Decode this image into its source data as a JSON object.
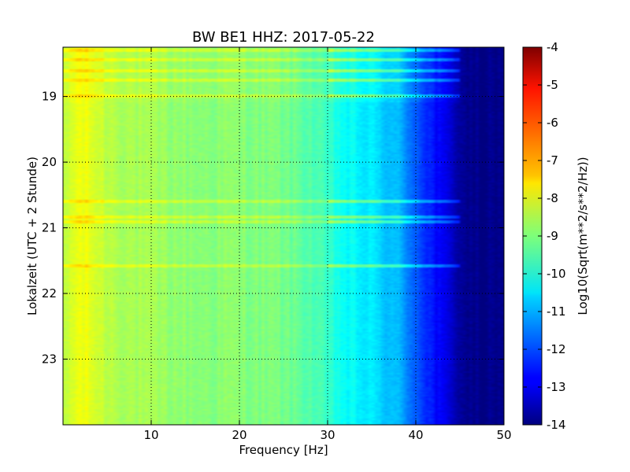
{
  "chart_data": {
    "type": "heatmap",
    "title": "BW BE1 HHZ: 2017-05-22",
    "xlabel": "Frequency [Hz]",
    "ylabel": "Lokalzeit (UTC + 2 Stunde)",
    "xlim": [
      0,
      50
    ],
    "ylim_hours_local": [
      18.25,
      24.0
    ],
    "x_ticks": [
      "10",
      "20",
      "30",
      "40",
      "50"
    ],
    "y_ticks": [
      "19",
      "20",
      "21",
      "22",
      "23"
    ],
    "grid": true,
    "y_inverted": true,
    "colormap": "jet",
    "colorbar": {
      "label": "Log10(Sqrt(m**2/s**2/Hz))",
      "range": [
        -14,
        -4
      ],
      "ticks": [
        "-4",
        "-5",
        "-6",
        "-7",
        "-8",
        "-9",
        "-10",
        "-11",
        "-12",
        "-13",
        "-14"
      ]
    },
    "spectral_profile": {
      "frequency_hz": [
        0,
        1,
        2,
        3,
        5,
        8,
        10,
        15,
        20,
        25,
        28,
        30,
        32,
        35,
        38,
        40,
        42,
        44,
        46,
        50
      ],
      "log10_amplitude": [
        -8.6,
        -8.1,
        -7.9,
        -8.0,
        -8.4,
        -8.6,
        -8.7,
        -8.9,
        -8.9,
        -9.1,
        -9.4,
        -9.8,
        -10.2,
        -10.5,
        -11.0,
        -11.8,
        -12.6,
        -13.3,
        -13.9,
        -14.0
      ]
    },
    "noise_bursts_local_time": [
      18.3,
      18.45,
      18.62,
      18.75,
      19.0,
      20.6,
      20.83,
      20.92,
      21.58
    ]
  }
}
